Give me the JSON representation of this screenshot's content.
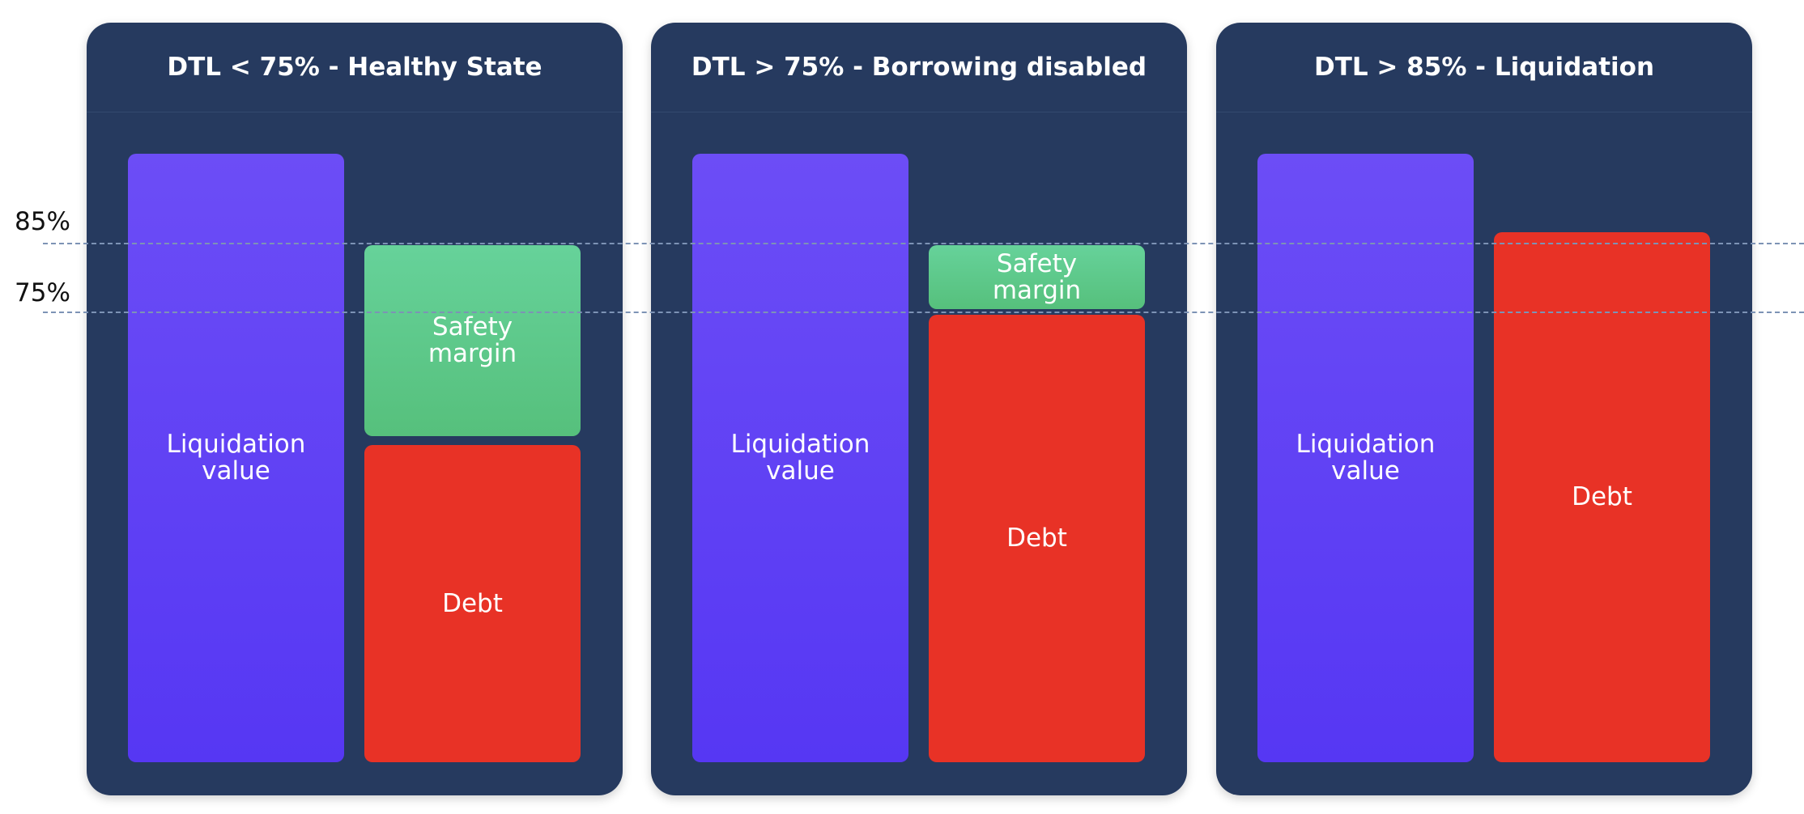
{
  "levels": [
    {
      "label": "85%"
    },
    {
      "label": "75%"
    }
  ],
  "panels": [
    {
      "title": "DTL < 75% - Healthy State",
      "left": {
        "label": "Liquidation\nvalue"
      },
      "right": [
        {
          "label": "Safety\nmargin"
        },
        {
          "label": "Debt"
        }
      ]
    },
    {
      "title": "DTL > 75% - Borrowing disabled",
      "left": {
        "label": "Liquidation\nvalue"
      },
      "right": [
        {
          "label": "Safety\nmargin"
        },
        {
          "label": "Debt"
        }
      ]
    },
    {
      "title": "DTL > 85% - Liquidation",
      "left": {
        "label": "Liquidation\nvalue"
      },
      "right": [
        {
          "label": "Debt"
        }
      ]
    }
  ]
}
